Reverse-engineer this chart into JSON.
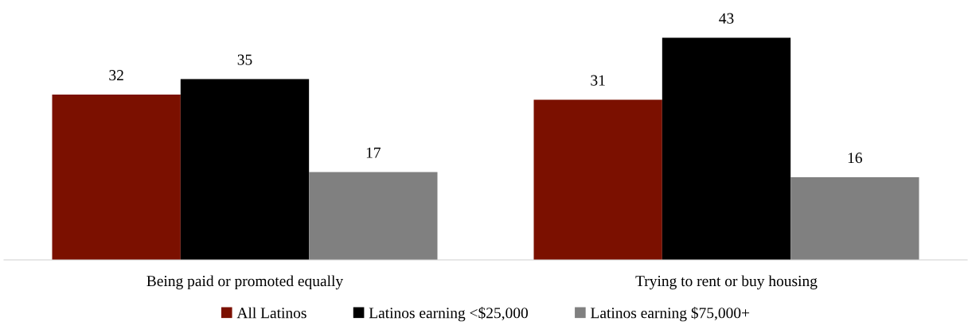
{
  "chart_data": {
    "type": "bar",
    "categories": [
      "Being paid or promoted equally",
      "Trying to rent or buy housing"
    ],
    "series": [
      {
        "name": "All Latinos",
        "color": "#7b1000",
        "values": [
          32,
          31
        ]
      },
      {
        "name": "Latinos earning <$25,000",
        "color": "#000000",
        "values": [
          35,
          43
        ]
      },
      {
        "name": "Latinos earning $75,000+",
        "color": "#808080",
        "values": [
          17,
          16
        ]
      }
    ],
    "tick_labels": "x",
    "data_labels": true,
    "grid": false,
    "legend": "bottom"
  }
}
